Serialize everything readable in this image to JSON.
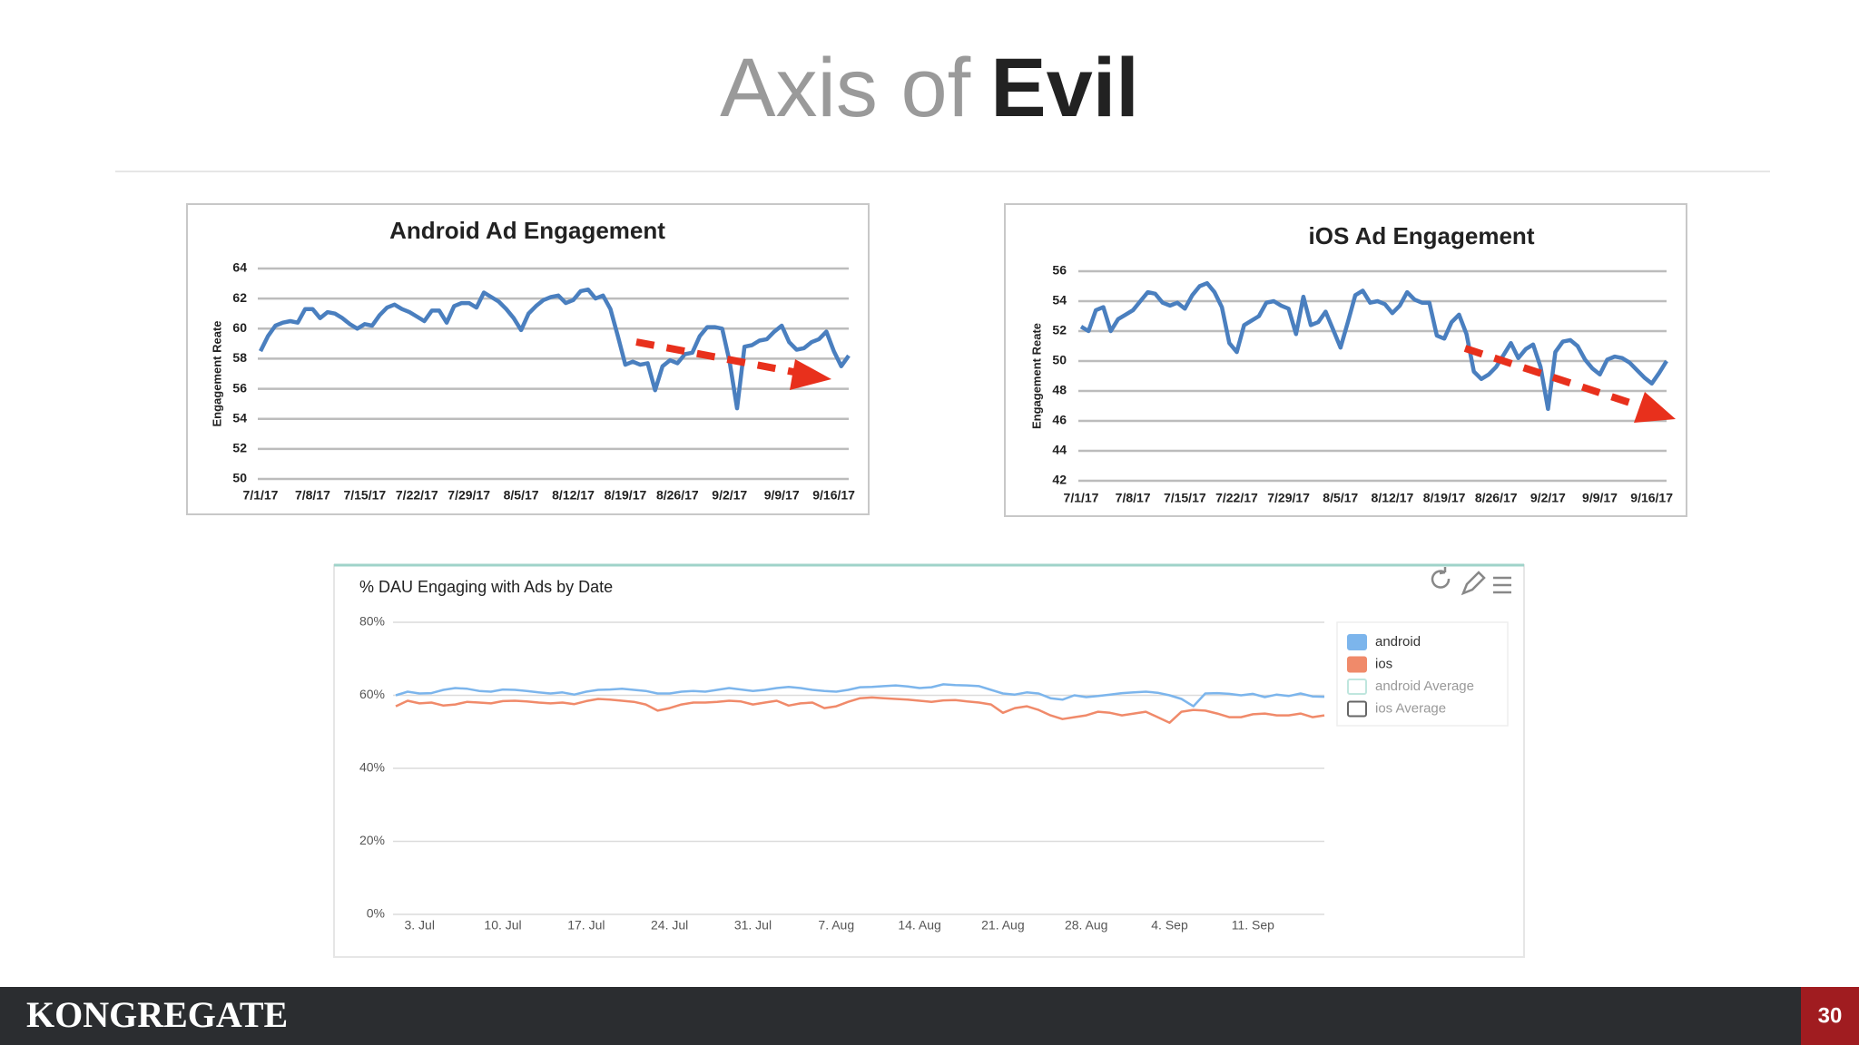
{
  "slide": {
    "title_light": "Axis of",
    "title_bold": "Evil",
    "footer_brand": "KONGREGATE",
    "page_number": 30
  },
  "chart_data": [
    {
      "type": "line",
      "title": "Android Ad Engagement",
      "y_label": "Engagement Reate",
      "color": "#4a7fbf",
      "grid": true,
      "ylim": [
        50,
        64
      ],
      "yticks": [
        50,
        52,
        54,
        56,
        58,
        60,
        62,
        64
      ],
      "categories": [
        "7/1/17",
        null,
        null,
        null,
        null,
        null,
        null,
        "7/8/17",
        null,
        null,
        null,
        null,
        null,
        null,
        "7/15/17",
        null,
        null,
        null,
        null,
        null,
        null,
        "7/22/17",
        null,
        null,
        null,
        null,
        null,
        null,
        "7/29/17",
        null,
        null,
        null,
        null,
        null,
        null,
        "8/5/17",
        null,
        null,
        null,
        null,
        null,
        null,
        "8/12/17",
        null,
        null,
        null,
        null,
        null,
        null,
        "8/19/17",
        null,
        null,
        null,
        null,
        null,
        null,
        "8/26/17",
        null,
        null,
        null,
        null,
        null,
        null,
        "9/2/17",
        null,
        null,
        null,
        null,
        null,
        null,
        "9/9/17",
        null,
        null,
        null,
        null,
        null,
        null,
        "9/16/17",
        null,
        null
      ],
      "values": [
        58.5,
        59.5,
        60.2,
        60.4,
        60.5,
        60.4,
        61.3,
        61.3,
        60.7,
        61.1,
        61.0,
        60.7,
        60.3,
        60.0,
        60.3,
        60.2,
        60.9,
        61.4,
        61.6,
        61.3,
        61.1,
        60.8,
        60.5,
        61.2,
        61.2,
        60.4,
        61.5,
        61.7,
        61.7,
        61.4,
        62.4,
        62.1,
        61.8,
        61.3,
        60.7,
        59.9,
        61.0,
        61.5,
        61.9,
        62.1,
        62.2,
        61.7,
        61.9,
        62.5,
        62.6,
        62.0,
        62.2,
        61.3,
        59.5,
        57.6,
        57.8,
        57.6,
        57.7,
        55.9,
        57.5,
        57.9,
        57.7,
        58.3,
        58.4,
        59.5,
        60.1,
        60.1,
        60.0,
        57.8,
        54.7,
        58.8,
        58.9,
        59.2,
        59.3,
        59.8,
        60.2,
        59.1,
        58.6,
        58.7,
        59.1,
        59.3,
        59.8,
        58.5,
        57.5,
        58.2
      ]
    },
    {
      "type": "line",
      "title": "iOS Ad Engagement",
      "y_label": "Engagement Reate",
      "color": "#4a7fbf",
      "grid": true,
      "ylim": [
        42,
        56
      ],
      "yticks": [
        42,
        44,
        46,
        48,
        50,
        52,
        54,
        56
      ],
      "categories": [
        "7/1/17",
        null,
        null,
        null,
        null,
        null,
        null,
        "7/8/17",
        null,
        null,
        null,
        null,
        null,
        null,
        "7/15/17",
        null,
        null,
        null,
        null,
        null,
        null,
        "7/22/17",
        null,
        null,
        null,
        null,
        null,
        null,
        "7/29/17",
        null,
        null,
        null,
        null,
        null,
        null,
        "8/5/17",
        null,
        null,
        null,
        null,
        null,
        null,
        "8/12/17",
        null,
        null,
        null,
        null,
        null,
        null,
        "8/19/17",
        null,
        null,
        null,
        null,
        null,
        null,
        "8/26/17",
        null,
        null,
        null,
        null,
        null,
        null,
        "9/2/17",
        null,
        null,
        null,
        null,
        null,
        null,
        "9/9/17",
        null,
        null,
        null,
        null,
        null,
        null,
        "9/16/17",
        null,
        null
      ],
      "values": [
        52.3,
        52.0,
        53.4,
        53.6,
        52.0,
        52.8,
        53.1,
        53.4,
        54.0,
        54.6,
        54.5,
        53.9,
        53.7,
        53.9,
        53.5,
        54.4,
        55.0,
        55.2,
        54.6,
        53.6,
        51.2,
        50.6,
        52.4,
        52.7,
        53.0,
        53.9,
        54.0,
        53.7,
        53.5,
        51.8,
        54.3,
        52.4,
        52.6,
        53.3,
        52.1,
        50.9,
        52.6,
        54.4,
        54.7,
        53.9,
        54.0,
        53.8,
        53.2,
        53.7,
        54.6,
        54.1,
        53.9,
        53.9,
        51.7,
        51.5,
        52.6,
        53.1,
        51.8,
        49.3,
        48.8,
        49.1,
        49.6,
        50.4,
        51.2,
        50.2,
        50.8,
        51.1,
        49.6,
        46.8,
        50.6,
        51.3,
        51.4,
        51.0,
        50.1,
        49.5,
        49.1,
        50.1,
        50.3,
        50.2,
        49.9,
        49.4,
        48.9,
        48.5,
        49.2,
        50.0
      ]
    },
    {
      "type": "line",
      "title": "% DAU Engaging with Ads by Date",
      "grid": true,
      "ylim": [
        0,
        80
      ],
      "yticks": [
        {
          "value": 0,
          "label": "0%"
        },
        {
          "value": 20,
          "label": "20%"
        },
        {
          "value": 40,
          "label": "40%"
        },
        {
          "value": 60,
          "label": "60%"
        },
        {
          "value": 80,
          "label": "80%"
        }
      ],
      "categories": [
        null,
        null,
        "3. Jul",
        null,
        null,
        null,
        null,
        null,
        null,
        "10. Jul",
        null,
        null,
        null,
        null,
        null,
        null,
        "17. Jul",
        null,
        null,
        null,
        null,
        null,
        null,
        "24. Jul",
        null,
        null,
        null,
        null,
        null,
        null,
        "31. Jul",
        null,
        null,
        null,
        null,
        null,
        null,
        "7. Aug",
        null,
        null,
        null,
        null,
        null,
        null,
        "14. Aug",
        null,
        null,
        null,
        null,
        null,
        null,
        "21. Aug",
        null,
        null,
        null,
        null,
        null,
        null,
        "28. Aug",
        null,
        null,
        null,
        null,
        null,
        null,
        "4. Sep",
        null,
        null,
        null,
        null,
        null,
        null,
        "11. Sep",
        null,
        null,
        null,
        null,
        null,
        null
      ],
      "series": [
        {
          "name": "android",
          "color": "#7cb5ec",
          "values": [
            60,
            61,
            60.5,
            60.6,
            61.5,
            62,
            61.8,
            61.2,
            61,
            61.6,
            61.5,
            61.2,
            60.8,
            60.5,
            60.8,
            60.2,
            61,
            61.5,
            61.6,
            61.8,
            61.5,
            61.2,
            60.5,
            60.5,
            61,
            61.2,
            61,
            61.5,
            62,
            61.6,
            61.2,
            61.5,
            62,
            62.3,
            62,
            61.5,
            61.2,
            61,
            61.5,
            62.2,
            62.3,
            62.5,
            62.7,
            62.4,
            62,
            62.2,
            63,
            62.8,
            62.7,
            62.5,
            61.5,
            60.5,
            60.2,
            60.8,
            60.5,
            59.2,
            58.8,
            60,
            59.5,
            59.8,
            60.2,
            60.6,
            60.8,
            61,
            60.7,
            60,
            59,
            57,
            60.5,
            60.6,
            60.4,
            60,
            60.4,
            59.5,
            60.2,
            59.8,
            60.5,
            59.7,
            59.6
          ]
        },
        {
          "name": "ios",
          "color": "#f08a6a",
          "values": [
            57,
            58.5,
            57.8,
            58,
            57.2,
            57.5,
            58.2,
            58,
            57.8,
            58.4,
            58.5,
            58.3,
            58,
            57.8,
            58,
            57.6,
            58.4,
            59,
            58.8,
            58.5,
            58.2,
            57.5,
            55.8,
            56.5,
            57.5,
            58,
            58,
            58.2,
            58.5,
            58.3,
            57.5,
            58,
            58.5,
            57.2,
            57.8,
            58,
            56.5,
            57,
            58.2,
            59.2,
            59.4,
            59.2,
            59,
            58.8,
            58.5,
            58.2,
            58.6,
            58.7,
            58.3,
            58,
            57.5,
            55.2,
            56.5,
            57,
            56,
            54.5,
            53.5,
            54,
            54.5,
            55.5,
            55.2,
            54.5,
            55,
            55.5,
            54,
            52.5,
            55.5,
            56,
            55.8,
            55,
            54,
            54,
            54.8,
            55,
            54.5,
            54.5,
            55,
            54,
            54.5
          ]
        }
      ],
      "legend_only_series": [
        {
          "name": "android Average",
          "color": "#bfe6de"
        },
        {
          "name": "ios Average",
          "color": "#666666"
        }
      ]
    }
  ]
}
